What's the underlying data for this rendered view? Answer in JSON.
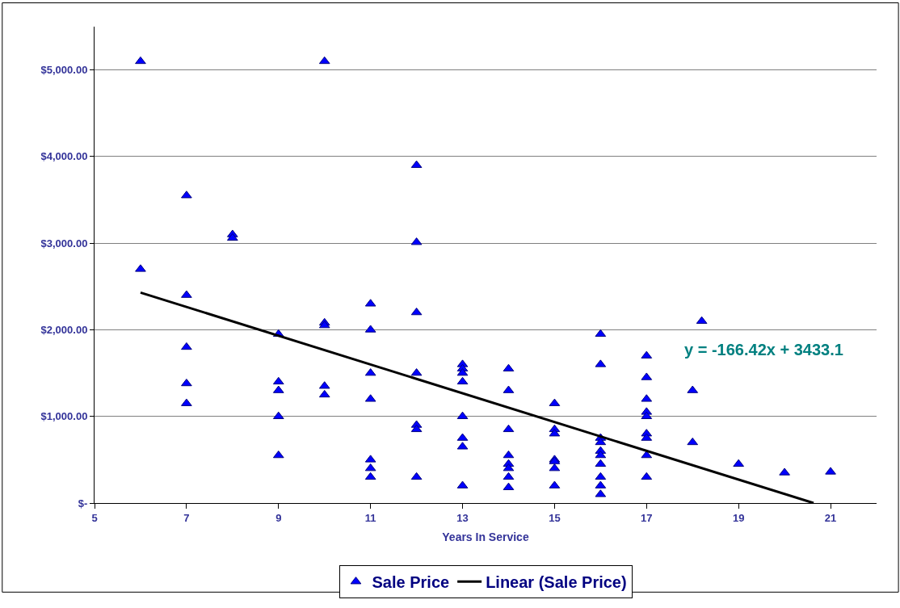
{
  "chart_data": {
    "type": "scatter",
    "xlabel": "Years In Service",
    "x": [
      6,
      6,
      7,
      7,
      7,
      7,
      7,
      8,
      8,
      9,
      9,
      9,
      9,
      9,
      10,
      10,
      10,
      10,
      10,
      11,
      11,
      11,
      11,
      11,
      11,
      11,
      12,
      12,
      12,
      12,
      12,
      12,
      12,
      13,
      13,
      13,
      13,
      13,
      13,
      13,
      13,
      14,
      14,
      14,
      14,
      14,
      14,
      14,
      14,
      15,
      15,
      15,
      15,
      15,
      15,
      15,
      16,
      16,
      16,
      16,
      16,
      16,
      16,
      16,
      16,
      16,
      17,
      17,
      17,
      17,
      17,
      17,
      17,
      17,
      17,
      18,
      18,
      18.2,
      19,
      20,
      21
    ],
    "series": [
      {
        "name": "Sale Price",
        "color": "#0000ff",
        "marker": "triangle",
        "values": [
          5100,
          2700,
          3550,
          2400,
          1800,
          1380,
          1150,
          3100,
          3060,
          1950,
          1400,
          1300,
          1000,
          550,
          5100,
          2080,
          2050,
          1350,
          1250,
          2300,
          2000,
          1500,
          1200,
          500,
          400,
          300,
          3900,
          3010,
          2200,
          1500,
          900,
          850,
          300,
          1600,
          1550,
          1500,
          1400,
          1000,
          750,
          650,
          200,
          1550,
          1300,
          850,
          550,
          450,
          400,
          300,
          180,
          1150,
          850,
          800,
          500,
          480,
          400,
          200,
          1950,
          1600,
          750,
          700,
          600,
          550,
          450,
          300,
          200,
          100,
          1700,
          1450,
          1200,
          1050,
          1000,
          800,
          750,
          550,
          300,
          1300,
          700,
          2100,
          450,
          350,
          360
        ]
      },
      {
        "name": "Linear (Sale Price)",
        "type": "line",
        "color": "#000000",
        "marker": "none",
        "line_style": "solid",
        "x": [
          6,
          20.63
        ],
        "values": [
          2430,
          0
        ]
      }
    ],
    "annotations": [
      "y = -166.42x + 3433.1"
    ],
    "xlim": [
      5,
      22
    ],
    "xticks": [
      5,
      7,
      9,
      11,
      13,
      15,
      17,
      19,
      21
    ],
    "ylim": [
      0,
      5500
    ],
    "yticks": [
      {
        "value": 0,
        "label": "$-"
      },
      {
        "value": 1000,
        "label": "$1,000.00"
      },
      {
        "value": 2000,
        "label": "$2,000.00"
      },
      {
        "value": 3000,
        "label": "$3,000.00"
      },
      {
        "value": 4000,
        "label": "$4,000.00"
      },
      {
        "value": 5000,
        "label": "$5,000.00"
      }
    ],
    "grid": "y",
    "legend": "bottom"
  }
}
